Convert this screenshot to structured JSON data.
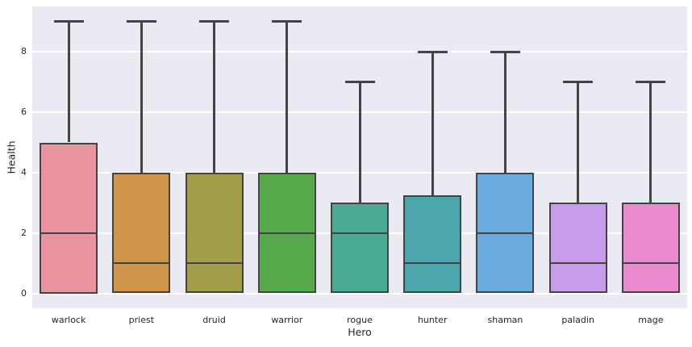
{
  "chart_data": {
    "type": "box",
    "title": "",
    "xlabel": "Hero",
    "ylabel": "Health",
    "categories": [
      "warlock",
      "priest",
      "druid",
      "warrior",
      "rogue",
      "hunter",
      "shaman",
      "paladin",
      "mage"
    ],
    "yticks": [
      0,
      2,
      4,
      6,
      8
    ],
    "ylim": [
      -0.45,
      9.45
    ],
    "grid": "horizontal-white-on-lavender",
    "legend": "none",
    "boxes": [
      {
        "category": "warlock",
        "q1": 0,
        "median": 2,
        "q3": 5,
        "whisker_low": 0,
        "whisker_high": 9,
        "color": "#e9949f"
      },
      {
        "category": "priest",
        "q1": 0,
        "median": 1,
        "q3": 4,
        "whisker_low": 0,
        "whisker_high": 9,
        "color": "#cf9549"
      },
      {
        "category": "druid",
        "q1": 0,
        "median": 1,
        "q3": 4,
        "whisker_low": 0,
        "whisker_high": 9,
        "color": "#a29d48"
      },
      {
        "category": "warrior",
        "q1": 0,
        "median": 2,
        "q3": 4,
        "whisker_low": 0,
        "whisker_high": 9,
        "color": "#58ab4c"
      },
      {
        "category": "rogue",
        "q1": 0,
        "median": 2,
        "q3": 3,
        "whisker_low": 0,
        "whisker_high": 7,
        "color": "#4aab93"
      },
      {
        "category": "hunter",
        "q1": 0,
        "median": 1,
        "q3": 3.25,
        "whisker_low": 0,
        "whisker_high": 8,
        "color": "#4ca6ad"
      },
      {
        "category": "shaman",
        "q1": 0,
        "median": 2,
        "q3": 4,
        "whisker_low": 0,
        "whisker_high": 8,
        "color": "#6aabe0"
      },
      {
        "category": "paladin",
        "q1": 0,
        "median": 1,
        "q3": 3,
        "whisker_low": 0,
        "whisker_high": 7,
        "color": "#c79cea"
      },
      {
        "category": "mage",
        "q1": 0,
        "median": 1,
        "q3": 3,
        "whisker_low": 0,
        "whisker_high": 7,
        "color": "#e98bce"
      }
    ],
    "colors": {
      "figure_background": "#ffffff",
      "axes_background": "#eaeaf2",
      "grid": "#ffffff",
      "line": "#434343",
      "text": "#262626"
    }
  }
}
